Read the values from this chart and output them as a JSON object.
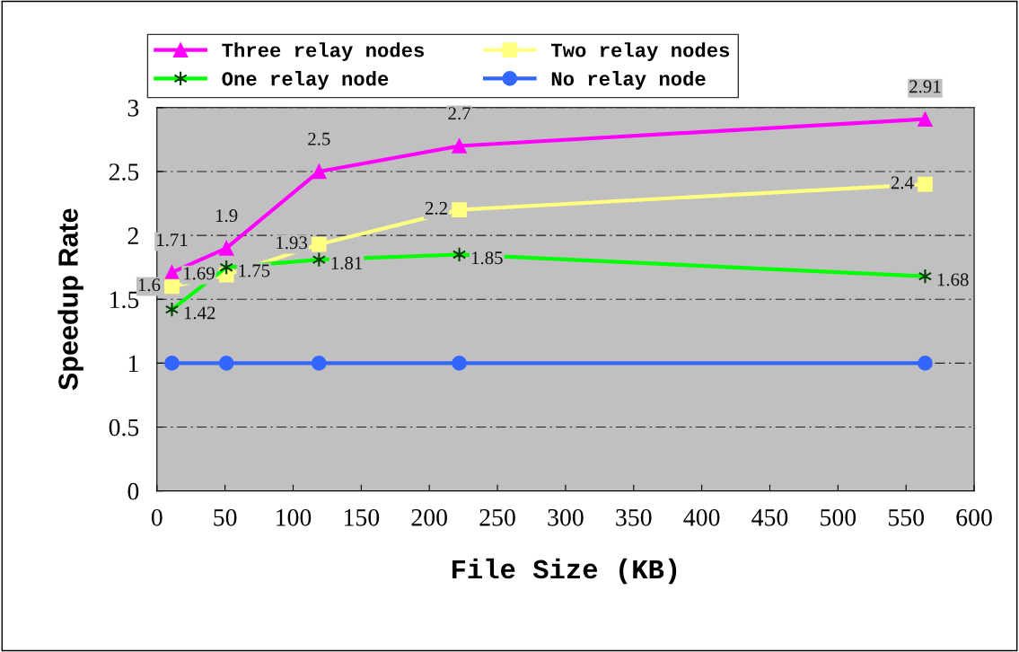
{
  "chart_data": {
    "type": "line",
    "xlabel": "File Size (KB)",
    "ylabel": "Speedup Rate",
    "x": [
      11,
      51,
      119,
      222,
      564
    ],
    "series": [
      {
        "name": "Three relay nodes",
        "color": "#ff00ff",
        "marker": "triangle",
        "values": [
          1.71,
          1.9,
          2.5,
          2.7,
          2.91
        ],
        "value_labels": [
          "1.71",
          "1.9",
          "2.5",
          "2.7",
          "2.91"
        ]
      },
      {
        "name": "Two relay nodes",
        "color": "#ffff80",
        "marker": "square",
        "values": [
          1.6,
          1.69,
          1.93,
          2.2,
          2.4
        ],
        "value_labels": [
          "1.6",
          "1.69",
          "1.93",
          "2.2",
          "2.4"
        ]
      },
      {
        "name": "One relay node",
        "color": "#00ff00",
        "marker": "cross",
        "values": [
          1.42,
          1.75,
          1.81,
          1.85,
          1.68
        ],
        "value_labels": [
          "1.42",
          "1.75",
          "1.81",
          "1.85",
          "1.68"
        ]
      },
      {
        "name": "No relay node",
        "color": "#3366ff",
        "marker": "circle",
        "values": [
          1,
          1,
          1,
          1,
          1
        ]
      }
    ],
    "xlim": [
      0,
      600
    ],
    "xticks": [
      0,
      50,
      100,
      150,
      200,
      250,
      300,
      350,
      400,
      450,
      500,
      550,
      600
    ],
    "ylim": [
      0,
      3
    ],
    "yticks": [
      0,
      0.5,
      1,
      1.5,
      2,
      2.5,
      3
    ],
    "grid": "y",
    "legend": "top"
  }
}
